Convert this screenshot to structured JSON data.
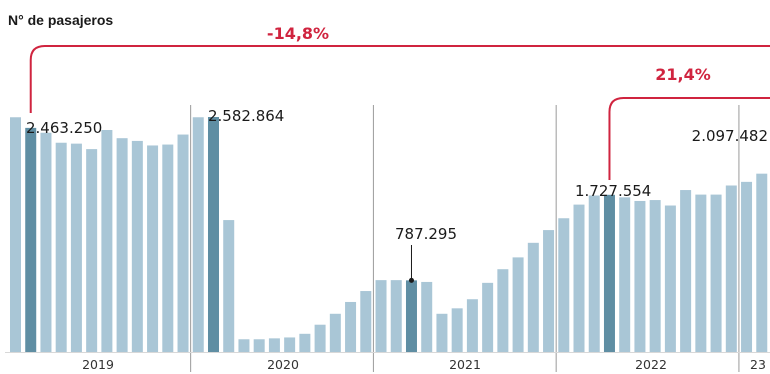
{
  "chart_data": {
    "type": "bar",
    "ylabel": "N° de pasajeros",
    "year_labels": [
      "2019",
      "2020",
      "2021",
      "2022",
      "23"
    ],
    "values": [
      2580000,
      2463250,
      2410000,
      2300000,
      2290000,
      2230000,
      2440000,
      2350000,
      2320000,
      2270000,
      2280000,
      2390000,
      2580000,
      2582864,
      1450000,
      140000,
      140000,
      150000,
      160000,
      200000,
      300000,
      420000,
      550000,
      670000,
      790000,
      790000,
      787295,
      770000,
      420000,
      480000,
      580000,
      760000,
      910000,
      1040000,
      1200000,
      1340000,
      1470000,
      1620000,
      1720000,
      1727554,
      1700000,
      1660000,
      1670000,
      1610000,
      1780000,
      1730000,
      1730000,
      1830000,
      1870000,
      1960000,
      2120000,
      2097482
    ],
    "highlighted_index": [
      1,
      13,
      26,
      39,
      51
    ],
    "data_labels": [
      {
        "index": 1,
        "text": "2.463.250"
      },
      {
        "index": 13,
        "text": "2.582.864"
      },
      {
        "index": 26,
        "text": "787.295"
      },
      {
        "index": 39,
        "text": "1.727.554"
      },
      {
        "index": 51,
        "text": "2.097.482"
      }
    ],
    "comparisons": [
      {
        "from_index": 1,
        "to_index": 51,
        "text": "-14,8%"
      },
      {
        "from_index": 39,
        "to_index": 51,
        "text": "21,4%"
      }
    ],
    "ylim": [
      0,
      2700000
    ],
    "colors": {
      "bar": "#a9c6d6",
      "bar_highlight": "#5f8ea3",
      "bracket": "#d0243f",
      "divider": "#9a9a9a",
      "text": "#1a1a1a"
    }
  }
}
